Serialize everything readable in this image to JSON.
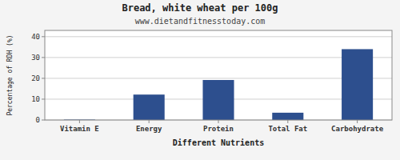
{
  "chart_data": {
    "type": "bar",
    "title": "Bread, white wheat per 100g",
    "subtitle": "www.dietandfitnesstoday.com",
    "xlabel": "Different Nutrients",
    "ylabel": "Percentage of RDH (%)",
    "categories": [
      "Vitamin E",
      "Energy",
      "Protein",
      "Total Fat",
      "Carbohydrate"
    ],
    "values": [
      0.2,
      12.2,
      19.2,
      3.5,
      34.0
    ],
    "color": "#2d4f8e",
    "ylim": [
      0,
      43
    ],
    "yticks": [
      0,
      10,
      20,
      30,
      40
    ],
    "grid": true
  }
}
